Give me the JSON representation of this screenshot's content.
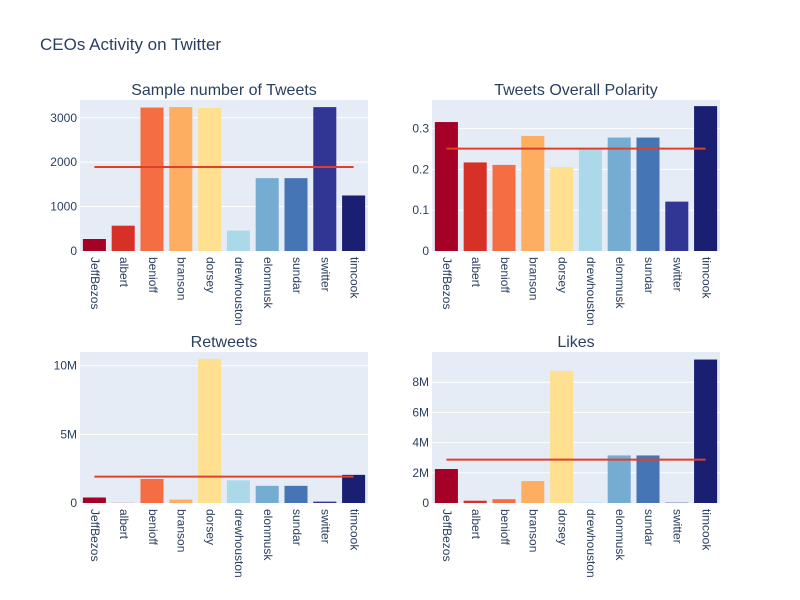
{
  "title": "CEOs Activity on Twitter",
  "chart_data": [
    {
      "type": "bar",
      "title": "Sample number of Tweets",
      "categories": [
        "JeffBezos",
        "albert",
        "benioff",
        "branson",
        "dorsey",
        "drewhouston",
        "elonmusk",
        "sundar",
        "switter",
        "timcook"
      ],
      "values": [
        270,
        570,
        3230,
        3240,
        3220,
        460,
        1640,
        1640,
        3240,
        1250
      ],
      "mean": 1890,
      "ylim": [
        0,
        3400
      ],
      "yticks": [
        0,
        1000,
        2000,
        3000
      ],
      "ytick_labels": [
        "0",
        "1000",
        "2000",
        "3000"
      ]
    },
    {
      "type": "bar",
      "title": "Tweets Overall Polarity",
      "categories": [
        "JeffBezos",
        "albert",
        "benioff",
        "branson",
        "dorsey",
        "drewhouston",
        "elonmusk",
        "sundar",
        "switter",
        "timcook"
      ],
      "values": [
        0.316,
        0.217,
        0.211,
        0.282,
        0.206,
        0.25,
        0.278,
        0.278,
        0.121,
        0.355
      ],
      "mean": 0.251,
      "ylim": [
        0,
        0.37
      ],
      "yticks": [
        0,
        0.1,
        0.2,
        0.3
      ],
      "ytick_labels": [
        "0",
        "0.1",
        "0.2",
        "0.3"
      ]
    },
    {
      "type": "bar",
      "title": "Retweets",
      "categories": [
        "JeffBezos",
        "albert",
        "benioff",
        "branson",
        "dorsey",
        "drewhouston",
        "elonmusk",
        "sundar",
        "switter",
        "timcook"
      ],
      "values": [
        400000,
        10000,
        1750000,
        250000,
        10500000,
        1650000,
        1250000,
        1250000,
        100000,
        2050000
      ],
      "mean": 1920000,
      "ylim": [
        0,
        11000000
      ],
      "yticks": [
        0,
        5000000,
        10000000
      ],
      "ytick_labels": [
        "0",
        "5M",
        "10M"
      ]
    },
    {
      "type": "bar",
      "title": "Likes",
      "categories": [
        "JeffBezos",
        "albert",
        "benioff",
        "branson",
        "dorsey",
        "drewhouston",
        "elonmusk",
        "sundar",
        "switter",
        "timcook"
      ],
      "values": [
        2250000,
        150000,
        250000,
        1450000,
        8750000,
        30000,
        3150000,
        3150000,
        20000,
        9500000
      ],
      "mean": 2870000,
      "ylim": [
        0,
        10000000
      ],
      "yticks": [
        0,
        2000000,
        4000000,
        6000000,
        8000000
      ],
      "ytick_labels": [
        "0",
        "2M",
        "4M",
        "6M",
        "8M"
      ]
    }
  ],
  "colors": [
    "#a50026",
    "#d73027",
    "#f46d43",
    "#fdae61",
    "#fee090",
    "#abd9e9",
    "#74add1",
    "#4575b4",
    "#313695",
    "#1a1f71"
  ],
  "mean_line_color": "#e0402a"
}
